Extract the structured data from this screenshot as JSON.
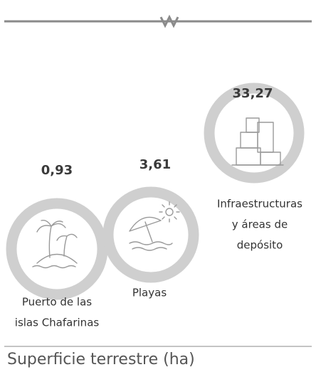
{
  "footer": "Superficie terrestre (ha)",
  "items": [
    {
      "value": "0,93",
      "label_lines": [
        "Puerto de las",
        "islas Chafarinas"
      ]
    },
    {
      "value": "3,61",
      "label_lines": [
        "Playas"
      ]
    },
    {
      "value": "33,27",
      "label_lines": [
        "Infraestructuras",
        "y áreas de",
        "depósito"
      ]
    }
  ]
}
